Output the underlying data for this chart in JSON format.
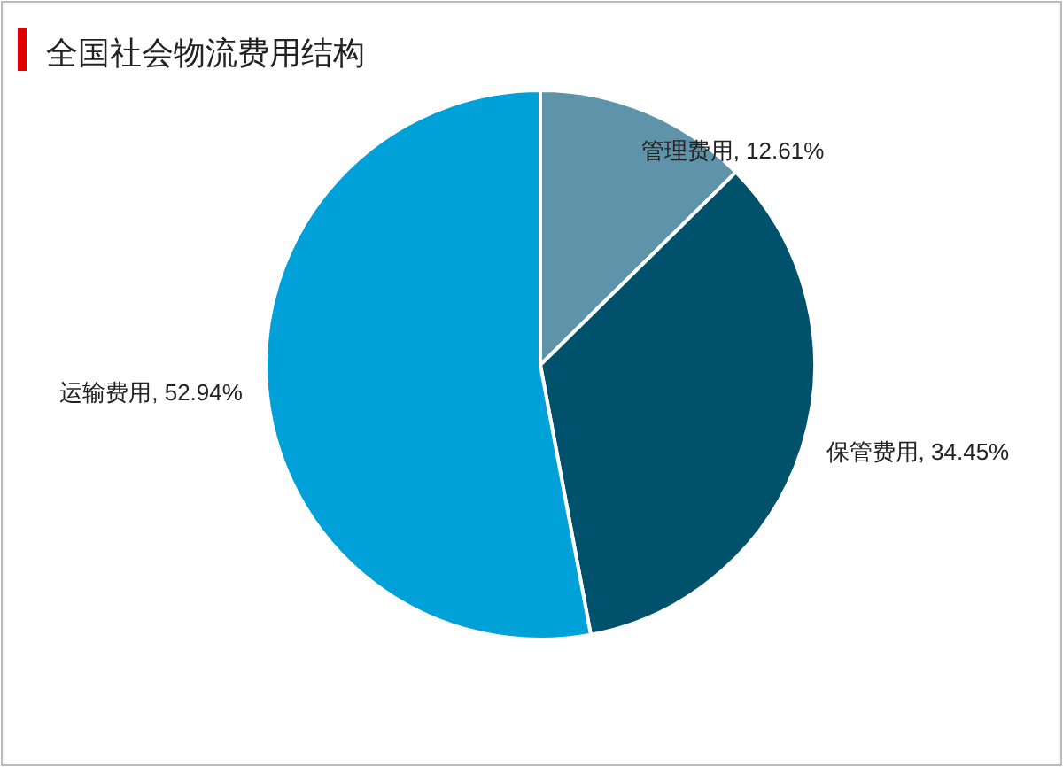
{
  "chart_data": {
    "type": "pie",
    "title": "全国社会物流费用结构",
    "categories": [
      "管理费用",
      "保管费用",
      "运输费用"
    ],
    "values": [
      12.61,
      34.45,
      52.94
    ],
    "value_labels": [
      "12.61%",
      "34.45%",
      "52.94%"
    ],
    "colors": [
      "#5e93a9",
      "#00516b",
      "#00a0d8"
    ]
  }
}
